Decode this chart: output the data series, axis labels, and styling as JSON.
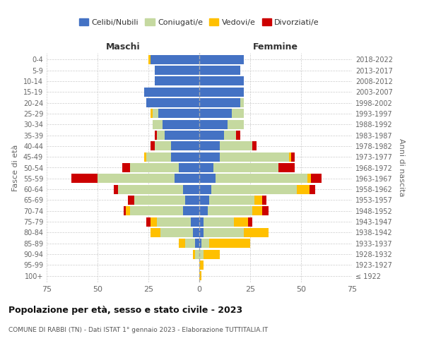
{
  "age_groups": [
    "100+",
    "95-99",
    "90-94",
    "85-89",
    "80-84",
    "75-79",
    "70-74",
    "65-69",
    "60-64",
    "55-59",
    "50-54",
    "45-49",
    "40-44",
    "35-39",
    "30-34",
    "25-29",
    "20-24",
    "15-19",
    "10-14",
    "5-9",
    "0-4"
  ],
  "birth_years": [
    "≤ 1922",
    "1923-1927",
    "1928-1932",
    "1933-1937",
    "1938-1942",
    "1943-1947",
    "1948-1952",
    "1953-1957",
    "1958-1962",
    "1963-1967",
    "1968-1972",
    "1973-1977",
    "1978-1982",
    "1983-1987",
    "1988-1992",
    "1993-1997",
    "1998-2002",
    "2003-2007",
    "2008-2012",
    "2013-2017",
    "2018-2022"
  ],
  "colors": {
    "celibe": "#4472c4",
    "coniugato": "#c5d9a0",
    "vedovo": "#ffc000",
    "divorziato": "#cc0000"
  },
  "maschi": {
    "celibe": [
      0,
      0,
      0,
      2,
      3,
      4,
      8,
      7,
      8,
      12,
      10,
      14,
      14,
      17,
      18,
      20,
      26,
      27,
      22,
      22,
      24
    ],
    "coniugato": [
      0,
      0,
      2,
      5,
      16,
      17,
      26,
      25,
      32,
      38,
      24,
      12,
      8,
      4,
      5,
      3,
      0,
      0,
      0,
      0,
      0
    ],
    "vedovo": [
      0,
      0,
      1,
      3,
      5,
      3,
      2,
      0,
      0,
      0,
      0,
      1,
      0,
      0,
      0,
      1,
      0,
      0,
      0,
      0,
      1
    ],
    "divorziato": [
      0,
      0,
      0,
      0,
      0,
      2,
      1,
      3,
      2,
      13,
      4,
      0,
      2,
      1,
      0,
      0,
      0,
      0,
      0,
      0,
      0
    ]
  },
  "femmine": {
    "celibe": [
      0,
      0,
      0,
      1,
      2,
      2,
      4,
      5,
      6,
      8,
      7,
      10,
      10,
      12,
      14,
      16,
      20,
      22,
      22,
      20,
      22
    ],
    "coniugato": [
      0,
      0,
      2,
      4,
      20,
      15,
      22,
      22,
      42,
      45,
      32,
      34,
      16,
      6,
      8,
      6,
      2,
      0,
      0,
      0,
      0
    ],
    "vedovo": [
      1,
      2,
      8,
      20,
      12,
      7,
      5,
      4,
      6,
      2,
      0,
      1,
      0,
      0,
      0,
      0,
      0,
      0,
      0,
      0,
      0
    ],
    "divorziato": [
      0,
      0,
      0,
      0,
      0,
      2,
      3,
      2,
      3,
      5,
      8,
      2,
      2,
      2,
      0,
      0,
      0,
      0,
      0,
      0,
      0
    ]
  },
  "xlim": 75,
  "title": "Popolazione per età, sesso e stato civile - 2023",
  "subtitle": "COMUNE DI RABBI (TN) - Dati ISTAT 1° gennaio 2023 - Elaborazione TUTTITALIA.IT",
  "ylabel_left": "Fasce di età",
  "ylabel_right": "Anni di nascita",
  "xlabel_left": "Maschi",
  "xlabel_right": "Femmine",
  "background_color": "#ffffff",
  "grid_color": "#cccccc"
}
